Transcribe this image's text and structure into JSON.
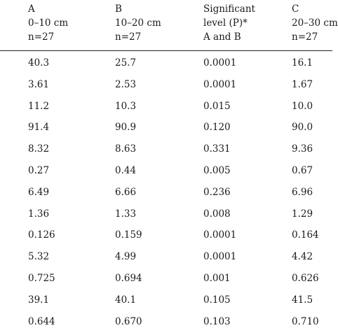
{
  "table": {
    "headers": [
      [
        "A",
        "0–10 cm",
        "n=27"
      ],
      [
        "B",
        "10–20 cm",
        "n=27"
      ],
      [
        "Significant",
        "level (P)*",
        "A and B"
      ],
      [
        "C",
        "20–30 cm",
        "n=27"
      ]
    ],
    "rows": [
      [
        "40.3",
        "25.7",
        "0.0001",
        "16.1"
      ],
      [
        "3.61",
        "2.53",
        "0.0001",
        "1.67"
      ],
      [
        "11.2",
        "10.3",
        "0.015",
        "10.0"
      ],
      [
        "91.4",
        "90.9",
        "0.120",
        "90.0"
      ],
      [
        "8.32",
        "8.63",
        "0.331",
        "9.36"
      ],
      [
        "0.27",
        "0.44",
        "0.005",
        "0.67"
      ],
      [
        "6.49",
        "6.66",
        "0.236",
        "6.96"
      ],
      [
        "1.36",
        "1.33",
        "0.008",
        "1.29"
      ],
      [
        "0.126",
        "0.159",
        "0.0001",
        "0.164"
      ],
      [
        "5.32",
        "4.99",
        "0.0001",
        "4.42"
      ],
      [
        "0.725",
        "0.694",
        "0.001",
        "0.626"
      ],
      [
        "39.1",
        "40.1",
        "0.105",
        "41.5"
      ],
      [
        "0.644",
        "0.670",
        "0.103",
        "0.710"
      ]
    ]
  }
}
